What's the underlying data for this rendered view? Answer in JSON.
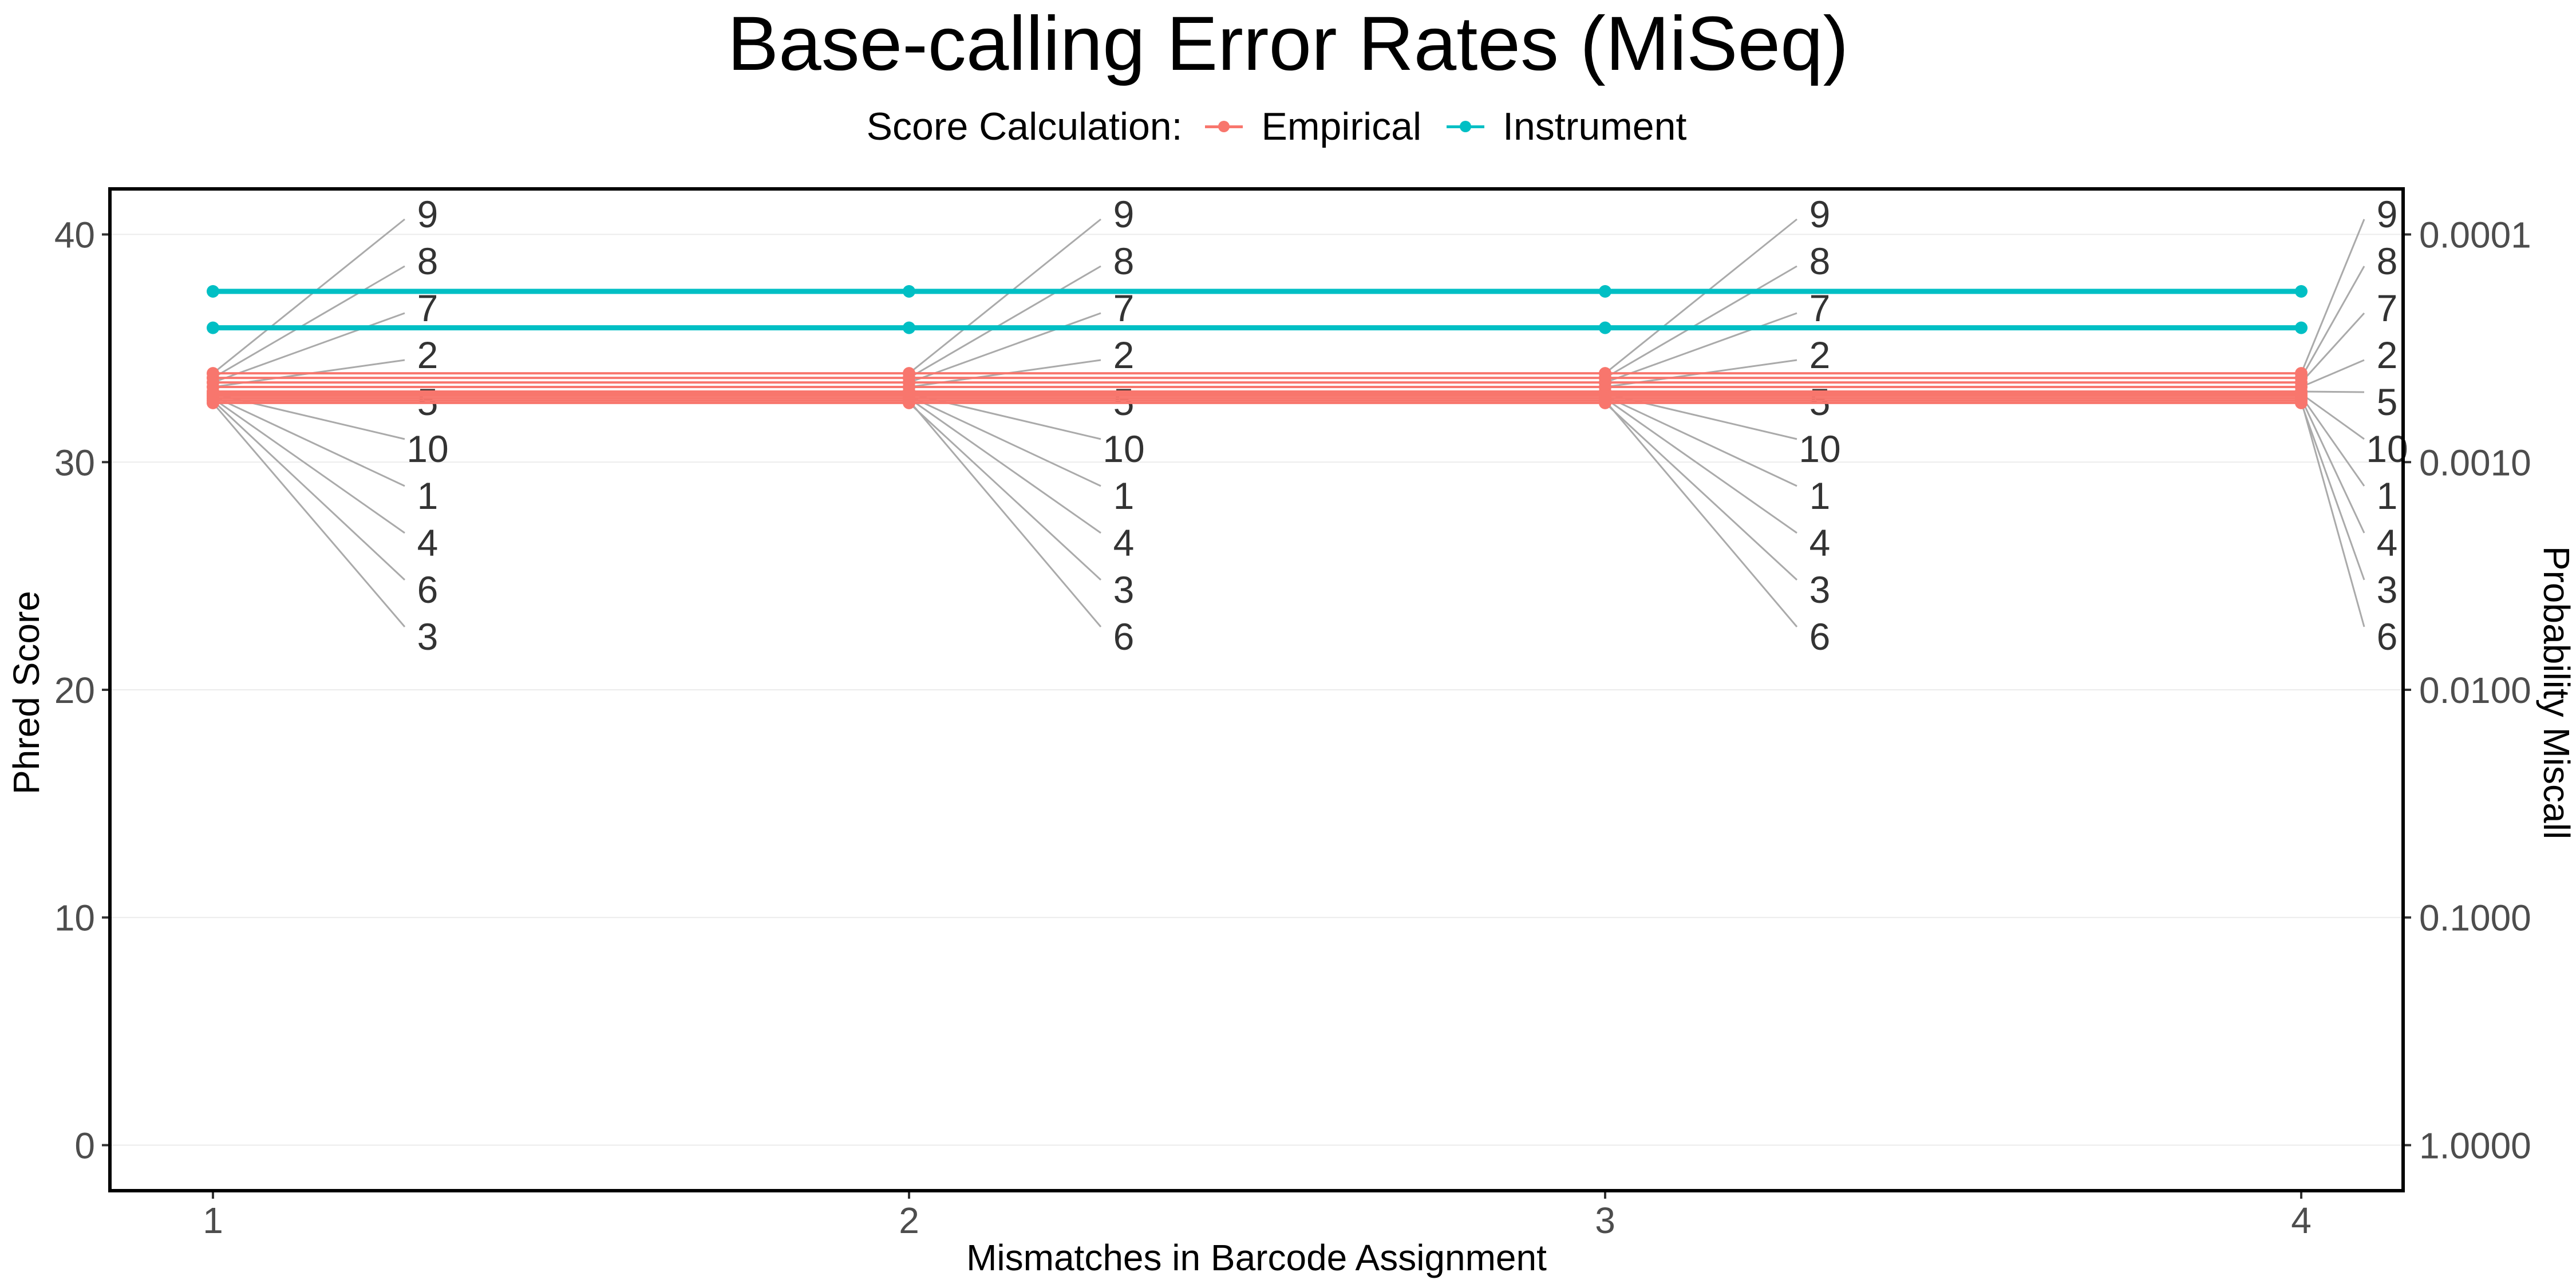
{
  "chart_data": {
    "type": "line",
    "title": "Base-calling Error Rates (MiSeq)",
    "xlabel": "Mismatches in Barcode Assignment",
    "ylabel": "Phred Score",
    "y2label": "Probability Miscall",
    "x": [
      1,
      2,
      3,
      4
    ],
    "xticks": [
      "1",
      "2",
      "3",
      "4"
    ],
    "ylim": [
      -2,
      42
    ],
    "yticks": [
      0,
      10,
      20,
      30,
      40
    ],
    "y2ticks": [
      {
        "label": "0.0001",
        "phred": 40
      },
      {
        "label": "0.0010",
        "phred": 30
      },
      {
        "label": "0.0100",
        "phred": 20
      },
      {
        "label": "0.1000",
        "phred": 10
      },
      {
        "label": "1.0000",
        "phred": 0
      }
    ],
    "grid": true,
    "legend": {
      "title": "Score Calculation:",
      "position": "top",
      "entries": [
        {
          "name": "Empirical",
          "color": "#F8766D"
        },
        {
          "name": "Instrument",
          "color": "#00BFC4"
        }
      ]
    },
    "series": [
      {
        "group": "Empirical",
        "label": "9",
        "values": [
          33.9,
          33.9,
          33.9,
          33.9
        ]
      },
      {
        "group": "Empirical",
        "label": "8",
        "values": [
          33.7,
          33.7,
          33.7,
          33.7
        ]
      },
      {
        "group": "Empirical",
        "label": "7",
        "values": [
          33.5,
          33.5,
          33.5,
          33.5
        ]
      },
      {
        "group": "Empirical",
        "label": "2",
        "values": [
          33.3,
          33.3,
          33.3,
          33.3
        ]
      },
      {
        "group": "Empirical",
        "label": "5",
        "values": [
          33.1,
          33.1,
          33.1,
          33.1
        ]
      },
      {
        "group": "Empirical",
        "label": "10",
        "values": [
          33.0,
          33.0,
          33.0,
          33.0
        ]
      },
      {
        "group": "Empirical",
        "label": "1",
        "values": [
          32.9,
          32.9,
          32.9,
          32.9
        ]
      },
      {
        "group": "Empirical",
        "label": "4",
        "values": [
          32.8,
          32.8,
          32.8,
          32.8
        ]
      },
      {
        "group": "Empirical",
        "label": "6",
        "values": [
          32.7,
          32.7,
          32.7,
          32.7
        ]
      },
      {
        "group": "Empirical",
        "label": "3",
        "values": [
          32.6,
          32.6,
          32.6,
          32.6
        ]
      },
      {
        "group": "Instrument",
        "values": [
          37.5,
          37.5,
          37.5,
          37.5
        ]
      },
      {
        "group": "Instrument",
        "values": [
          35.9,
          35.9,
          35.9,
          35.9
        ]
      }
    ],
    "point_labels": [
      {
        "x": 1,
        "labels": [
          "9",
          "8",
          "7",
          "2",
          "5",
          "10",
          "1",
          "4",
          "6",
          "3"
        ]
      },
      {
        "x": 2,
        "labels": [
          "9",
          "8",
          "7",
          "2",
          "5",
          "10",
          "1",
          "4",
          "3",
          "6"
        ]
      },
      {
        "x": 3,
        "labels": [
          "9",
          "8",
          "7",
          "2",
          "5",
          "10",
          "1",
          "4",
          "3",
          "6"
        ]
      },
      {
        "x": 4,
        "labels": [
          "9",
          "8",
          "7",
          "2",
          "5",
          "10",
          "1",
          "4",
          "3",
          "6"
        ]
      }
    ],
    "colors": {
      "empirical": "#F8766D",
      "instrument": "#00BFC4",
      "leader": "#AAAAAA",
      "grid": "#EBEBEB"
    }
  }
}
